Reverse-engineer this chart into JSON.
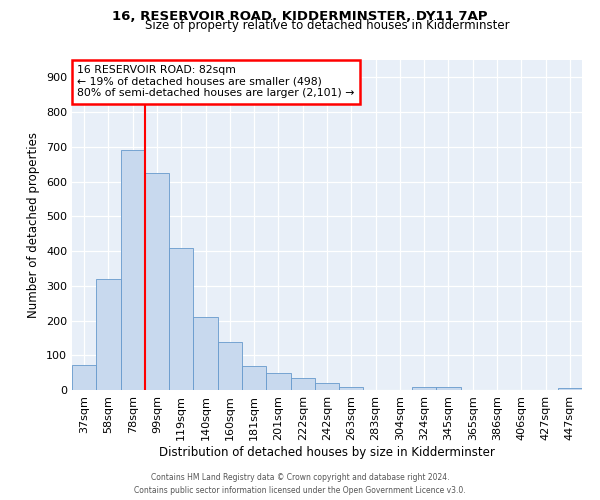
{
  "title": "16, RESERVOIR ROAD, KIDDERMINSTER, DY11 7AP",
  "subtitle": "Size of property relative to detached houses in Kidderminster",
  "xlabel": "Distribution of detached houses by size in Kidderminster",
  "ylabel": "Number of detached properties",
  "bar_labels": [
    "37sqm",
    "58sqm",
    "78sqm",
    "99sqm",
    "119sqm",
    "140sqm",
    "160sqm",
    "181sqm",
    "201sqm",
    "222sqm",
    "242sqm",
    "263sqm",
    "283sqm",
    "304sqm",
    "324sqm",
    "345sqm",
    "365sqm",
    "386sqm",
    "406sqm",
    "427sqm",
    "447sqm"
  ],
  "bar_values": [
    72,
    320,
    690,
    625,
    410,
    210,
    138,
    68,
    48,
    35,
    20,
    10,
    0,
    0,
    8,
    8,
    0,
    0,
    0,
    0,
    5
  ],
  "bar_color": "#c8d9ee",
  "bar_edge_color": "#6699cc",
  "background_color": "#e8eff8",
  "vline_color": "red",
  "annotation_title": "16 RESERVOIR ROAD: 82sqm",
  "annotation_line1": "← 19% of detached houses are smaller (498)",
  "annotation_line2": "80% of semi-detached houses are larger (2,101) →",
  "annotation_box_color": "white",
  "annotation_box_edge": "red",
  "ylim": [
    0,
    950
  ],
  "yticks": [
    0,
    100,
    200,
    300,
    400,
    500,
    600,
    700,
    800,
    900
  ],
  "footer1": "Contains HM Land Registry data © Crown copyright and database right 2024.",
  "footer2": "Contains public sector information licensed under the Open Government Licence v3.0."
}
